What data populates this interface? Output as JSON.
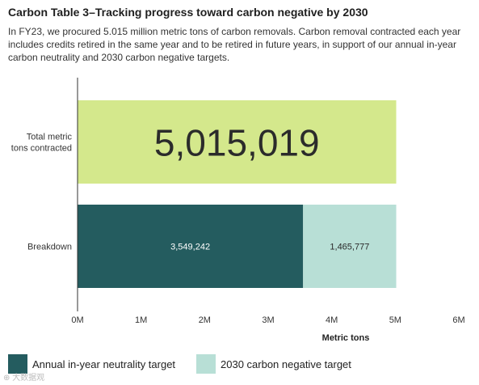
{
  "title": "Carbon Table 3–Tracking progress toward carbon negative by 2030",
  "subtitle": "In FY23, we procured 5.015 million metric tons of carbon removals. Carbon removal contracted each year includes credits retired in the same year and to be retired in future years, in support of our annual in-year carbon neutrality and 2030 carbon negative targets.",
  "watermark": "⊕ 大数据观",
  "chart_data": {
    "type": "bar",
    "orientation": "horizontal",
    "stacked": true,
    "categories": [
      "Total metric tons contracted",
      "Breakdown"
    ],
    "category_label_lines": [
      [
        "Total metric",
        "tons contracted"
      ],
      [
        "Breakdown"
      ]
    ],
    "series": [
      {
        "name": "",
        "values": [
          5015019,
          null
        ],
        "label": "5,015,019",
        "color": "#d4e88c"
      },
      {
        "name": "Annual in-year neutrality target",
        "values": [
          null,
          3549242
        ],
        "label": "3,549,242",
        "color": "#245c5f"
      },
      {
        "name": "2030 carbon negative target",
        "values": [
          null,
          1465777
        ],
        "label": "1,465,777",
        "color": "#b8dfd6"
      }
    ],
    "xlabel": "Metric tons",
    "xlim": [
      0,
      6000000
    ],
    "xticks": [
      0,
      1000000,
      2000000,
      3000000,
      4000000,
      5000000,
      6000000
    ],
    "xtick_labels": [
      "0M",
      "1M",
      "2M",
      "3M",
      "4M",
      "5M",
      "6M"
    ],
    "grid": false,
    "legend_position": "bottom-left"
  }
}
